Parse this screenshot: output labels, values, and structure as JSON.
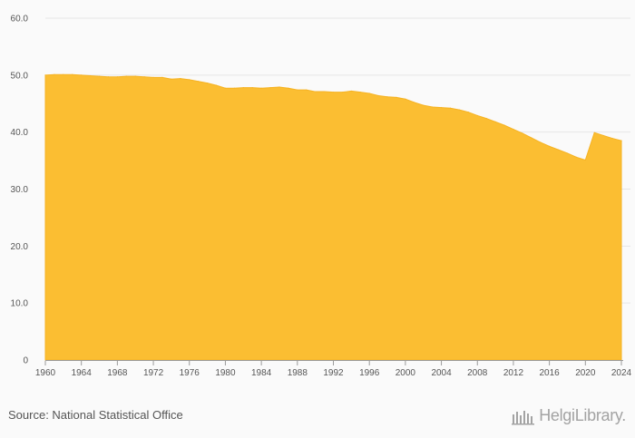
{
  "chart_data": {
    "type": "area",
    "color": "#FBBE32",
    "y_ticks": [
      "0",
      "10.0",
      "20.0",
      "30.0",
      "40.0",
      "50.0",
      "60.0"
    ],
    "x_ticks": [
      "1960",
      "1964",
      "1968",
      "1972",
      "1976",
      "1980",
      "1984",
      "1988",
      "1992",
      "1996",
      "2000",
      "2004",
      "2008",
      "2012",
      "2016",
      "2020",
      "2024"
    ],
    "ylim": [
      0,
      60
    ],
    "xlim": [
      1960,
      2024
    ],
    "grid": true,
    "x": [
      1960,
      1961,
      1962,
      1963,
      1964,
      1965,
      1966,
      1967,
      1968,
      1969,
      1970,
      1971,
      1972,
      1973,
      1974,
      1975,
      1976,
      1977,
      1978,
      1979,
      1980,
      1981,
      1982,
      1983,
      1984,
      1985,
      1986,
      1987,
      1988,
      1989,
      1990,
      1991,
      1992,
      1993,
      1994,
      1995,
      1996,
      1997,
      1998,
      1999,
      2000,
      2001,
      2002,
      2003,
      2004,
      2005,
      2006,
      2007,
      2008,
      2009,
      2010,
      2011,
      2012,
      2013,
      2014,
      2015,
      2016,
      2017,
      2018,
      2019,
      2020,
      2021,
      2022,
      2023,
      2024
    ],
    "y": [
      50.0,
      50.1,
      50.1,
      50.1,
      50.0,
      49.9,
      49.8,
      49.7,
      49.7,
      49.8,
      49.8,
      49.7,
      49.6,
      49.6,
      49.3,
      49.4,
      49.2,
      48.9,
      48.6,
      48.2,
      47.7,
      47.7,
      47.8,
      47.8,
      47.7,
      47.8,
      47.9,
      47.7,
      47.4,
      47.4,
      47.1,
      47.1,
      47.0,
      47.0,
      47.2,
      47.0,
      46.8,
      46.4,
      46.2,
      46.1,
      45.8,
      45.2,
      44.7,
      44.4,
      44.3,
      44.2,
      43.9,
      43.5,
      42.9,
      42.4,
      41.8,
      41.2,
      40.5,
      39.8,
      39.0,
      38.2,
      37.5,
      36.9,
      36.3,
      35.6,
      35.1,
      39.9,
      39.4,
      38.9,
      38.5
    ]
  },
  "footer": {
    "source": "Source: National Statistical Office",
    "brand": "HelgiLibrary."
  },
  "icons": {
    "brand_mark": "helgilibrary-logo-icon"
  }
}
